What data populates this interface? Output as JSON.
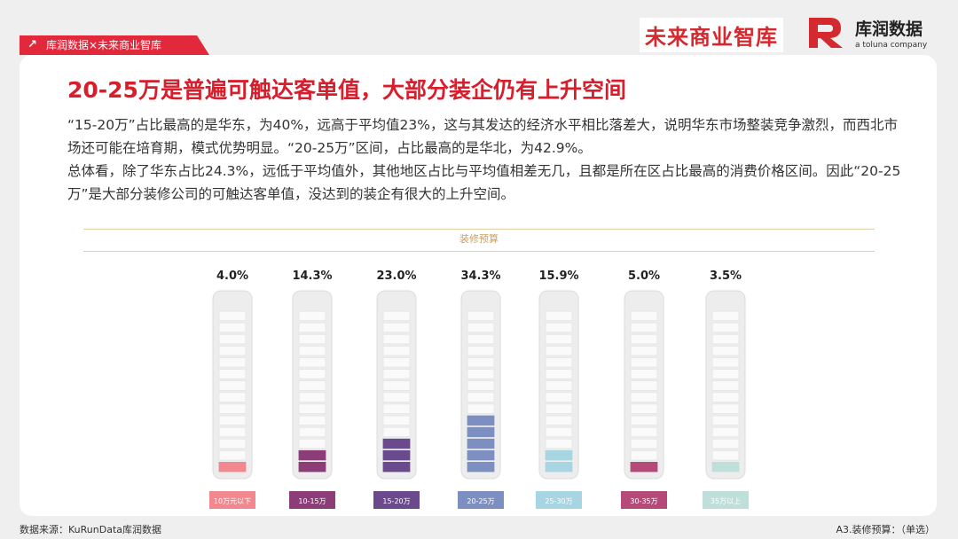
{
  "tag": {
    "label": "库润数据×未来商业智库"
  },
  "brand": {
    "left_logo": "未来商业智库",
    "right_name": "库润数据",
    "right_sub": "a toluna company"
  },
  "title": "20-25万是普遍可触达客单值，大部分装企仍有上升空间",
  "paragraphs": [
    "“15-20万”占比最高的是华东，为40%，远高于平均值23%，这与其发达的经济水平相比落差大，说明华东市场整装竞争激烈，而西北市场还可能在培育期，模式优势明显。“20-25万”区间，占比最高的是华北，为42.9%。",
    "总体看，除了华东占比24.3%，远低于平均值外，其他地区占比与平均值相差无几，且都是所在区占比最高的消费价格区间。因此“20-25万”是大部分装修公司的可触达客单值，没达到的装企有很大的上升空间。"
  ],
  "chart_data": {
    "type": "bar",
    "title": "装修预算",
    "categories": [
      "10万元以下",
      "10-15万",
      "15-20万",
      "20-25万",
      "25-30万",
      "30-35万",
      "35万以上"
    ],
    "values": [
      4.0,
      14.3,
      23.0,
      34.3,
      15.9,
      5.0,
      3.5
    ],
    "value_labels": [
      "4.0%",
      "14.3%",
      "23.0%",
      "34.3%",
      "15.9%",
      "5.0%",
      "3.5%"
    ],
    "colors": [
      "#f2878f",
      "#8c3c77",
      "#6a4a8c",
      "#7d8fc0",
      "#a8d5e2",
      "#b54a78",
      "#bfe0da"
    ],
    "ylim": [
      0,
      100
    ]
  },
  "footer": {
    "source": "数据来源：KuRunData库润数据",
    "note": "A3.装修预算：（单选）"
  }
}
